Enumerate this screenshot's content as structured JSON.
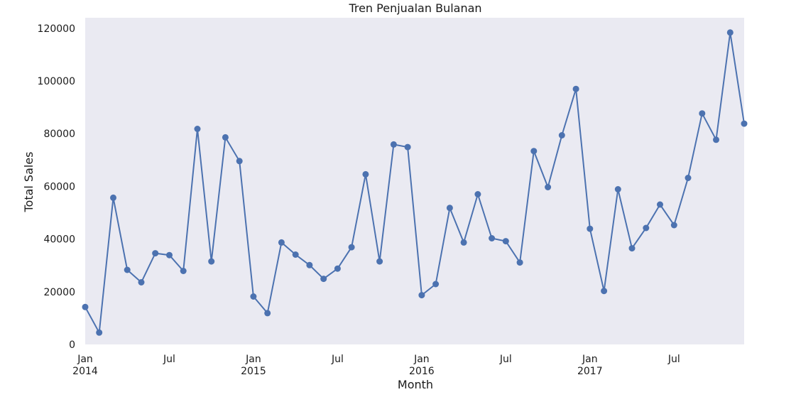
{
  "chart_data": {
    "type": "line",
    "title": "Tren Penjualan Bulanan",
    "xlabel": "Month",
    "ylabel": "Total Sales",
    "ylim": [
      0,
      124000
    ],
    "yticks": [
      0,
      20000,
      40000,
      60000,
      80000,
      100000,
      120000
    ],
    "xlim": [
      "2014-01",
      "2017-12"
    ],
    "xticks": [
      {
        "month": "2014-01",
        "line1": "Jan",
        "line2": "2014"
      },
      {
        "month": "2014-07",
        "line1": "Jul",
        "line2": ""
      },
      {
        "month": "2015-01",
        "line1": "Jan",
        "line2": "2015"
      },
      {
        "month": "2015-07",
        "line1": "Jul",
        "line2": ""
      },
      {
        "month": "2016-01",
        "line1": "Jan",
        "line2": "2016"
      },
      {
        "month": "2016-07",
        "line1": "Jul",
        "line2": ""
      },
      {
        "month": "2017-01",
        "line1": "Jan",
        "line2": "2017"
      },
      {
        "month": "2017-07",
        "line1": "Jul",
        "line2": ""
      }
    ],
    "grid": false,
    "colors": {
      "line": "#4c72b0",
      "plot_background": "#eaeaf2"
    },
    "series": [
      {
        "x": [
          "2014-01",
          "2014-02",
          "2014-03",
          "2014-04",
          "2014-05",
          "2014-06",
          "2014-07",
          "2014-08",
          "2014-09",
          "2014-10",
          "2014-11",
          "2014-12",
          "2015-01",
          "2015-02",
          "2015-03",
          "2015-04",
          "2015-05",
          "2015-06",
          "2015-07",
          "2015-08",
          "2015-09",
          "2015-10",
          "2015-11",
          "2015-12",
          "2016-01",
          "2016-02",
          "2016-03",
          "2016-04",
          "2016-05",
          "2016-06",
          "2016-07",
          "2016-08",
          "2016-09",
          "2016-10",
          "2016-11",
          "2016-12",
          "2017-01",
          "2017-02",
          "2017-03",
          "2017-04",
          "2017-05",
          "2017-06",
          "2017-07",
          "2017-08",
          "2017-09",
          "2017-10",
          "2017-11",
          "2017-12"
        ],
        "values": [
          14200,
          4500,
          55700,
          28300,
          23600,
          34600,
          33900,
          27900,
          81800,
          31500,
          78600,
          69600,
          18200,
          11900,
          38700,
          34100,
          30100,
          24900,
          28800,
          36900,
          64600,
          31500,
          75900,
          74900,
          18700,
          22900,
          51800,
          38700,
          57000,
          40300,
          39200,
          31100,
          73400,
          59700,
          79400,
          97000,
          43900,
          20300,
          58900,
          36500,
          44200,
          53100,
          45300,
          63200,
          87700,
          77700,
          118400,
          83800
        ]
      }
    ]
  }
}
